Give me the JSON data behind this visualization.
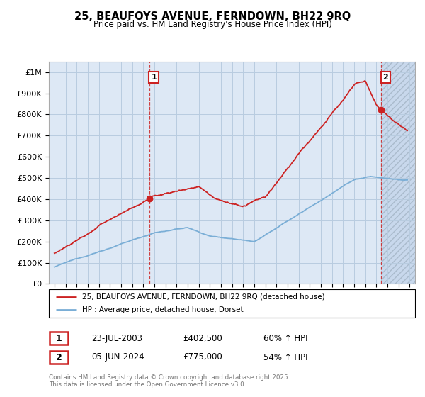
{
  "title": "25, BEAUFOYS AVENUE, FERNDOWN, BH22 9RQ",
  "subtitle": "Price paid vs. HM Land Registry's House Price Index (HPI)",
  "xlim": [
    1994.5,
    2027.5
  ],
  "ylim": [
    0,
    1050000
  ],
  "yticks": [
    0,
    100000,
    200000,
    300000,
    400000,
    500000,
    600000,
    700000,
    800000,
    900000,
    1000000
  ],
  "ytick_labels": [
    "£0",
    "£100K",
    "£200K",
    "£300K",
    "£400K",
    "£500K",
    "£600K",
    "£700K",
    "£800K",
    "£900K",
    "£1M"
  ],
  "hpi_color": "#7aaed6",
  "price_color": "#cc2222",
  "chart_bg": "#dde8f5",
  "hatch_bg": "#c8d8ec",
  "sale1_year": 2003.55,
  "sale2_year": 2024.42,
  "legend_line1": "25, BEAUFOYS AVENUE, FERNDOWN, BH22 9RQ (detached house)",
  "legend_line2": "HPI: Average price, detached house, Dorset",
  "table_row1": [
    "1",
    "23-JUL-2003",
    "£402,500",
    "60% ↑ HPI"
  ],
  "table_row2": [
    "2",
    "05-JUN-2024",
    "£775,000",
    "54% ↑ HPI"
  ],
  "footer": "Contains HM Land Registry data © Crown copyright and database right 2025.\nThis data is licensed under the Open Government Licence v3.0.",
  "background_color": "#ffffff",
  "grid_color": "#b8cce0"
}
